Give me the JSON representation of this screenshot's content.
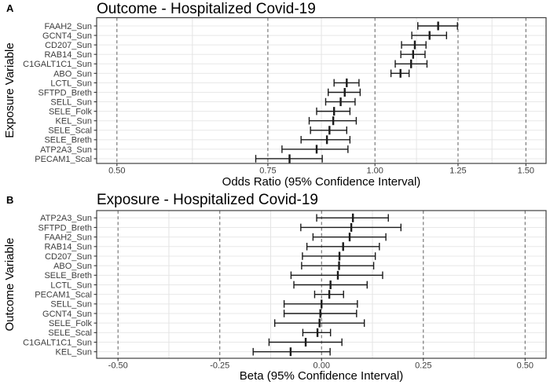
{
  "style": {
    "background": "#ffffff",
    "panel_border": "#3f3f3f",
    "errorbar_color": "#1a1a1a",
    "major_grid_color": "#6e6e6e",
    "major_grid_style": "dashed",
    "minor_grid_color": "#e4e4e4",
    "row_grid_color": "#e8e8e8",
    "tick_color": "#333333",
    "tick_label_color": "#3d3d3d",
    "title_color": "#000000"
  },
  "chart_data": [
    {
      "type": "scatter",
      "subtype": "forest_plot_error_bars",
      "panel_tag": "A",
      "title": "Outcome - Hospitalized Covid-19",
      "ylabel": "Exposure Variable",
      "xlabel": "Odds Ratio (95% Confidence Interval)",
      "x_scale": "log",
      "x_domain": [
        0.4735,
        1.5835
      ],
      "x_ticks": [
        0.5,
        0.75,
        1.0,
        1.25,
        1.5
      ],
      "x_tick_labels": [
        "0.50",
        "0.75",
        "1.00",
        "1.25",
        "1.50"
      ],
      "gridlines": {
        "major_vertical": "dashed",
        "minor_vertical": "light",
        "horizontal_rows": "light"
      },
      "legend": "none",
      "rows": [
        {
          "label": "FAAH2_Sun",
          "estimate": 1.185,
          "ci_low": 1.122,
          "ci_high": 1.248
        },
        {
          "label": "GCNT4_Sun",
          "estimate": 1.158,
          "ci_low": 1.104,
          "ci_high": 1.212
        },
        {
          "label": "CD207_Sun",
          "estimate": 1.113,
          "ci_low": 1.074,
          "ci_high": 1.147
        },
        {
          "label": "RAB14_Sun",
          "estimate": 1.108,
          "ci_low": 1.072,
          "ci_high": 1.144
        },
        {
          "label": "C1GALT1C1_Sun",
          "estimate": 1.102,
          "ci_low": 1.056,
          "ci_high": 1.15
        },
        {
          "label": "ABO_Sun",
          "estimate": 1.071,
          "ci_low": 1.044,
          "ci_high": 1.096
        },
        {
          "label": "LCTL_Sun",
          "estimate": 0.927,
          "ci_low": 0.896,
          "ci_high": 0.958
        },
        {
          "label": "SFTPD_Breth",
          "estimate": 0.922,
          "ci_low": 0.882,
          "ci_high": 0.961
        },
        {
          "label": "SELL_Sun",
          "estimate": 0.912,
          "ci_low": 0.876,
          "ci_high": 0.948
        },
        {
          "label": "SELE_Folk",
          "estimate": 0.896,
          "ci_low": 0.855,
          "ci_high": 0.935
        },
        {
          "label": "KEL_Sun",
          "estimate": 0.894,
          "ci_low": 0.838,
          "ci_high": 0.951
        },
        {
          "label": "SELE_Scal",
          "estimate": 0.885,
          "ci_low": 0.841,
          "ci_high": 0.927
        },
        {
          "label": "SELE_Breth",
          "estimate": 0.879,
          "ci_low": 0.82,
          "ci_high": 0.935
        },
        {
          "label": "ATP2A3_Sun",
          "estimate": 0.855,
          "ci_low": 0.779,
          "ci_high": 0.93
        },
        {
          "label": "PECAM1_Scal",
          "estimate": 0.795,
          "ci_low": 0.726,
          "ci_high": 0.868
        }
      ]
    },
    {
      "type": "scatter",
      "subtype": "forest_plot_error_bars",
      "panel_tag": "B",
      "title": "Exposure - Hospitalized Covid-19",
      "ylabel": "Outcome Variable",
      "xlabel": "Beta (95% Confidence Interval)",
      "x_scale": "linear",
      "x_domain": [
        -0.5525,
        0.5515
      ],
      "x_ticks": [
        -0.5,
        -0.25,
        0.0,
        0.25,
        0.5
      ],
      "x_tick_labels": [
        "-0.50",
        "-0.25",
        "0.00",
        "0.25",
        "0.50"
      ],
      "gridlines": {
        "major_vertical": "dashed",
        "minor_vertical": "light",
        "horizontal_rows": "light"
      },
      "legend": "none",
      "rows": [
        {
          "label": "ATP2A3_Sun",
          "estimate": 0.077,
          "ci_low": -0.012,
          "ci_high": 0.164
        },
        {
          "label": "SFTPD_Breth",
          "estimate": 0.073,
          "ci_low": -0.051,
          "ci_high": 0.195
        },
        {
          "label": "FAAH2_Sun",
          "estimate": 0.069,
          "ci_low": -0.021,
          "ci_high": 0.158
        },
        {
          "label": "RAB14_Sun",
          "estimate": 0.053,
          "ci_low": -0.036,
          "ci_high": 0.142
        },
        {
          "label": "CD207_Sun",
          "estimate": 0.044,
          "ci_low": -0.047,
          "ci_high": 0.132
        },
        {
          "label": "ABO_Sun",
          "estimate": 0.043,
          "ci_low": -0.049,
          "ci_high": 0.128
        },
        {
          "label": "SELE_Breth",
          "estimate": 0.04,
          "ci_low": -0.075,
          "ci_high": 0.15
        },
        {
          "label": "LCTL_Sun",
          "estimate": 0.022,
          "ci_low": -0.068,
          "ci_high": 0.112
        },
        {
          "label": "PECAM1_Scal",
          "estimate": 0.019,
          "ci_low": -0.017,
          "ci_high": 0.054
        },
        {
          "label": "SELL_Sun",
          "estimate": 0.0,
          "ci_low": -0.092,
          "ci_high": 0.088
        },
        {
          "label": "GCNT4_Sun",
          "estimate": -0.003,
          "ci_low": -0.092,
          "ci_high": 0.086
        },
        {
          "label": "SELE_Folk",
          "estimate": -0.005,
          "ci_low": -0.115,
          "ci_high": 0.105
        },
        {
          "label": "SELE_Scal",
          "estimate": -0.01,
          "ci_low": -0.046,
          "ci_high": 0.022
        },
        {
          "label": "C1GALT1C1_Sun",
          "estimate": -0.039,
          "ci_low": -0.129,
          "ci_high": 0.05
        },
        {
          "label": "KEL_Sun",
          "estimate": -0.076,
          "ci_low": -0.168,
          "ci_high": 0.021
        }
      ]
    }
  ]
}
